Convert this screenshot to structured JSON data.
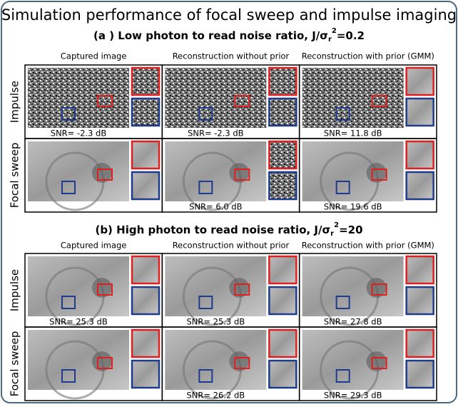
{
  "title": "Simulation performance of focal sweep and impulse imaging",
  "sections": [
    {
      "title_parts": [
        "(a ) Low photon to read noise ratio, J/σ",
        "r",
        "2",
        "=0.2"
      ],
      "columns": [
        "Captured image",
        "Reconstruction without prior",
        "Reconstruction with prior (GMM)"
      ],
      "rows": [
        {
          "label": "Impulse",
          "snr": [
            "SNR= -2.3 dB",
            "SNR= -2.3 dB",
            "SNR= 11.8 dB"
          ]
        },
        {
          "label": "Focal sweep",
          "snr": [
            null,
            "SNR= 6.0 dB",
            "SNR= 19.6 dB"
          ]
        }
      ]
    },
    {
      "title_parts": [
        "(b) High photon to read noise ratio, J/σ",
        "r",
        "2",
        "=20"
      ],
      "columns": [
        "Captured image",
        "Reconstruction without prior",
        "Reconstruction with prior (GMM)"
      ],
      "rows": [
        {
          "label": "Impulse",
          "snr": [
            "SNR= 25.3 dB",
            "SNR= 25.3 dB",
            "SNR= 27.8 dB"
          ]
        },
        {
          "label": "Focal sweep",
          "snr": [
            null,
            "SNR= 26.2 dB",
            "SNR= 29.3 dB"
          ]
        }
      ]
    }
  ]
}
